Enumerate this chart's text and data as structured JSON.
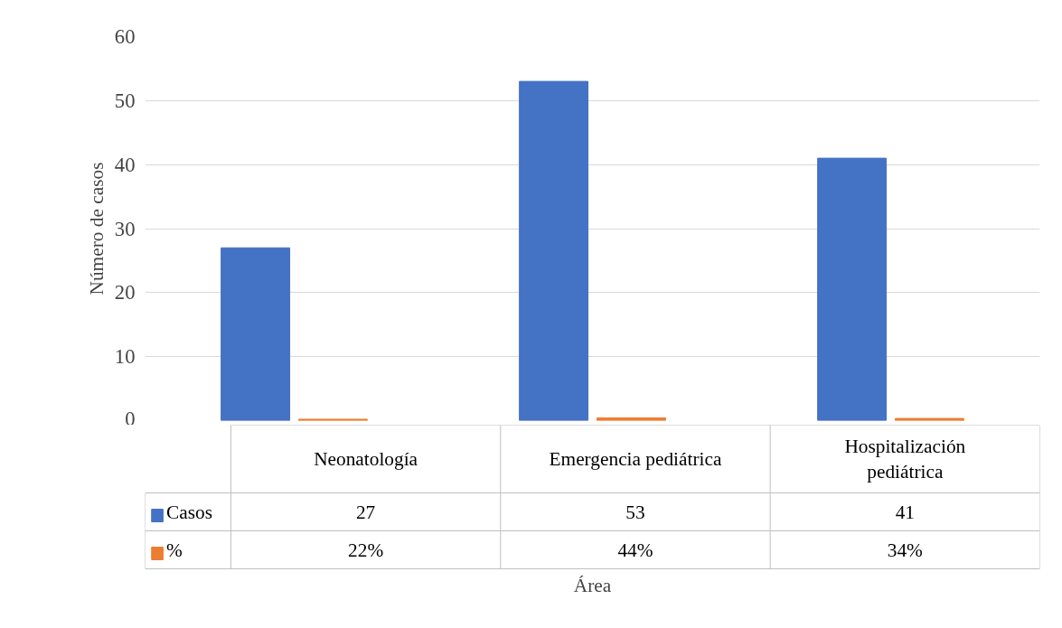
{
  "chart_data": {
    "type": "bar",
    "xlabel": "Área",
    "ylabel": "Número de casos",
    "categories": [
      "Neonatología",
      "Emergencia pediátrica",
      "Hospitalización pediátrica"
    ],
    "ylim": [
      0,
      60
    ],
    "legend": "bottom left",
    "yticks": [
      0,
      10,
      20,
      30,
      40,
      50,
      60
    ],
    "grid": "y",
    "series": [
      {
        "name": "Casos",
        "color": "#4472c4",
        "values": [
          27,
          53,
          41
        ],
        "value_labels": [
          "27",
          "53",
          "41"
        ]
      },
      {
        "name": "%",
        "color": "#ed7d31",
        "values": [
          0.22,
          0.44,
          0.34
        ],
        "value_labels": [
          "22%",
          "44%",
          "34%"
        ]
      }
    ]
  }
}
